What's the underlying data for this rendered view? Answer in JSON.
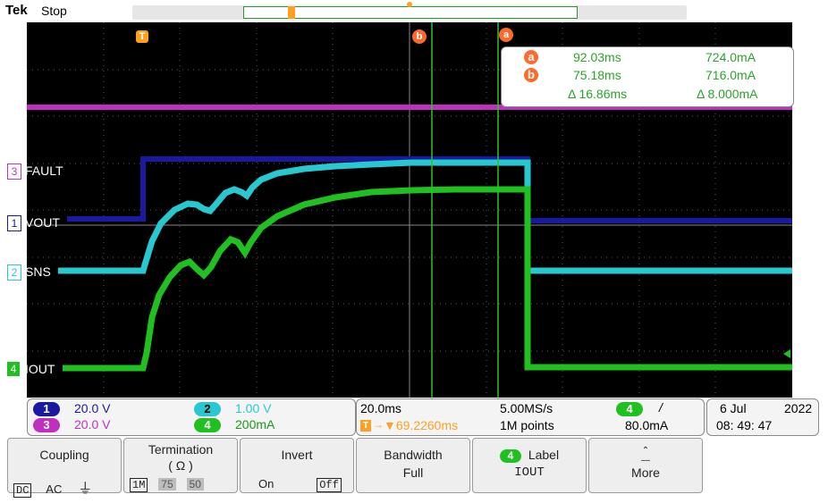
{
  "header": {
    "brand": "Tek",
    "acq_state": "Stop"
  },
  "colors": {
    "ch1": "#1a1aa0",
    "ch2": "#28c8d0",
    "ch3": "#c030c0",
    "ch4": "#20c020",
    "cursor": "#ff6a2a",
    "trigger": "#ffa020"
  },
  "markers": {
    "trigger": "T",
    "cursor_a": "a",
    "cursor_b": "b"
  },
  "channels": [
    {
      "num": "1",
      "label": "VOUT"
    },
    {
      "num": "2",
      "label": "SNS"
    },
    {
      "num": "3",
      "label": "FAULT"
    },
    {
      "num": "4",
      "label": "IOUT"
    }
  ],
  "cursor_readout": {
    "a_time": "92.03ms",
    "a_value": "724.0mA",
    "b_time": "75.18ms",
    "b_value": "716.0mA",
    "delta_time": "Δ 16.86ms",
    "delta_value": "Δ 8.000mA"
  },
  "vertical": {
    "ch1_scale": "20.0 V",
    "ch2_scale": "1.00 V",
    "ch3_scale": "20.0 V",
    "ch4_scale": "200mA"
  },
  "horizontal": {
    "time_div": "20.0ms",
    "sample_rate": "5.00MS/s",
    "trigger_pos": "▼69.2260ms",
    "record_length": "1M points"
  },
  "trigger": {
    "source": "4",
    "slope": "/",
    "level": "80.0mA"
  },
  "datetime": {
    "date": "6 Jul",
    "year": "2022",
    "time": "08: 49: 47"
  },
  "menu": {
    "coupling": {
      "title": "Coupling",
      "options": [
        "DC",
        "AC"
      ],
      "selected": "DC"
    },
    "termination": {
      "title": "Termination",
      "unit": "( Ω )",
      "options": [
        "1M",
        "75",
        "50"
      ],
      "selected": "1M"
    },
    "invert": {
      "title": "Invert",
      "on": "On",
      "off": "Off",
      "selected": "Off"
    },
    "bandwidth": {
      "title": "Bandwidth",
      "value": "Full"
    },
    "label": {
      "badge": "4",
      "title": "Label",
      "value": "IOUT"
    },
    "more": {
      "title": "More"
    }
  }
}
